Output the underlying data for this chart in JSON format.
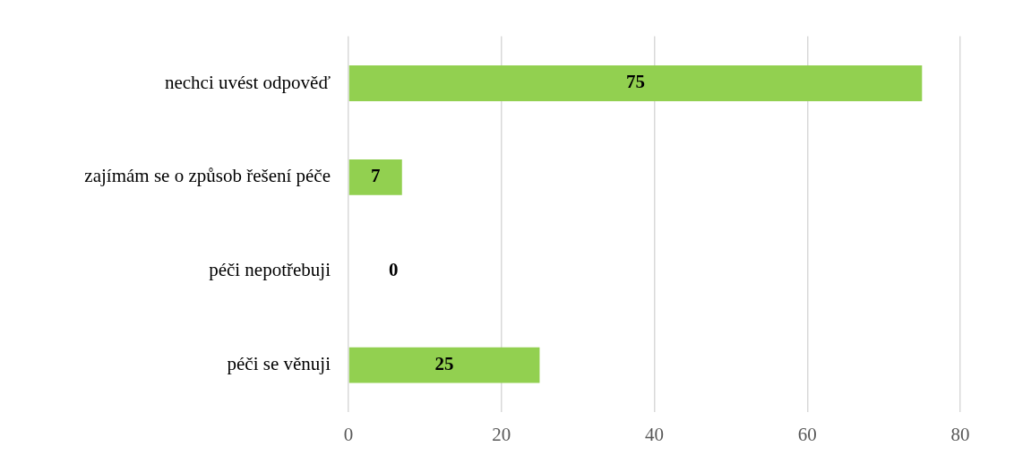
{
  "chart_data": {
    "type": "bar",
    "orientation": "horizontal",
    "categories": [
      "nechci uvést odpověď",
      "zajímám se o způsob řešení péče",
      "péči nepotřebuji",
      "péči se věnuji"
    ],
    "values": [
      75,
      7,
      0,
      25
    ],
    "color": "#92d050",
    "xlim": [
      0,
      80
    ],
    "xticks": [
      0,
      20,
      40,
      60,
      80
    ],
    "grid": "x",
    "legend": false,
    "data_labels": true
  }
}
